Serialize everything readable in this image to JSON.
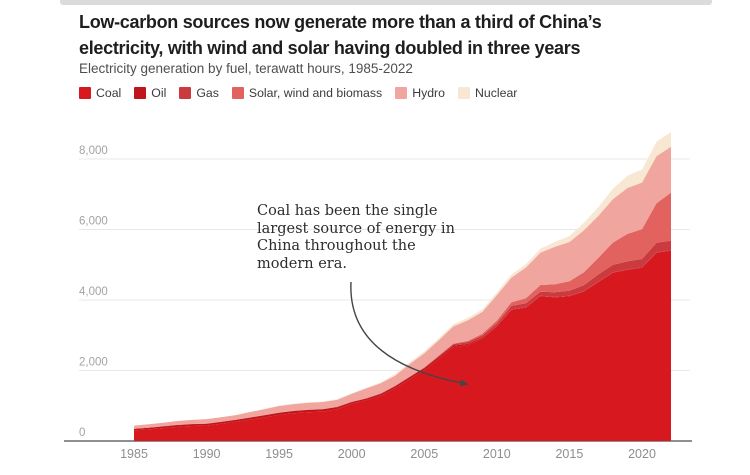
{
  "header": {
    "title_line1": "Low-carbon sources now generate more than a third of China’s",
    "title_line2": "electricity, with wind and solar having doubled in three years",
    "subtitle": "Electricity generation by fuel, terawatt hours, 1985-2022"
  },
  "legend": {
    "items": [
      {
        "label": "Coal",
        "color": "#d8181f"
      },
      {
        "label": "Oil",
        "color": "#c0151a"
      },
      {
        "label": "Gas",
        "color": "#cb3a3e"
      },
      {
        "label": "Solar, wind and biomass",
        "color": "#e2625f"
      },
      {
        "label": "Hydro",
        "color": "#f0a69f"
      },
      {
        "label": "Nuclear",
        "color": "#f8e8d3"
      }
    ]
  },
  "annotation": {
    "text": "Coal has been the single largest source of energy in China throughout the modern era."
  },
  "axes": {
    "y_ticks": [
      {
        "value": 0,
        "label": "0"
      },
      {
        "value": 2000,
        "label": "2,000"
      },
      {
        "value": 4000,
        "label": "4,000"
      },
      {
        "value": 6000,
        "label": "6,000"
      },
      {
        "value": 8000,
        "label": "8,000"
      }
    ],
    "x_ticks": [
      1985,
      1990,
      1995,
      2000,
      2005,
      2010,
      2015,
      2020
    ]
  },
  "chart_data": {
    "type": "area",
    "stacked": true,
    "title": "Low-carbon sources now generate more than a third of China’s electricity, with wind and solar having doubled in three years",
    "subtitle": "Electricity generation by fuel, terawatt hours, 1985-2022",
    "ylabel": "terawatt hours",
    "xlabel": "",
    "x_range": [
      1985,
      2022
    ],
    "ylim": [
      0,
      9300
    ],
    "grid": "horizontal",
    "legend_position": "top",
    "x": [
      1985,
      1986,
      1987,
      1988,
      1989,
      1990,
      1991,
      1992,
      1993,
      1994,
      1995,
      1996,
      1997,
      1998,
      1999,
      2000,
      2001,
      2002,
      2003,
      2004,
      2005,
      2006,
      2007,
      2008,
      2009,
      2010,
      2011,
      2012,
      2013,
      2014,
      2015,
      2016,
      2017,
      2018,
      2019,
      2020,
      2021,
      2022
    ],
    "series": [
      {
        "name": "Coal",
        "color": "#d8181f",
        "values": [
          300,
          330,
          365,
          400,
          425,
          441,
          490,
          545,
          605,
          670,
          740,
          790,
          815,
          835,
          905,
          1060,
          1155,
          1285,
          1500,
          1755,
          2010,
          2330,
          2660,
          2720,
          2905,
          3250,
          3720,
          3785,
          4110,
          4075,
          4109,
          4242,
          4512,
          4774,
          4854,
          4917,
          5339,
          5398
        ]
      },
      {
        "name": "Oil",
        "color": "#c0151a",
        "values": [
          45,
          47,
          50,
          55,
          55,
          50,
          52,
          55,
          60,
          62,
          60,
          62,
          68,
          65,
          58,
          47,
          48,
          52,
          55,
          60,
          60,
          55,
          45,
          35,
          25,
          14,
          12,
          10,
          10,
          10,
          9,
          10,
          10,
          10,
          10,
          10,
          11,
          11
        ]
      },
      {
        "name": "Gas",
        "color": "#cb3a3e",
        "values": [
          1,
          1,
          2,
          2,
          2,
          3,
          3,
          4,
          4,
          5,
          6,
          6,
          6,
          6,
          6,
          6,
          8,
          10,
          10,
          11,
          12,
          28,
          44,
          56,
          65,
          79,
          100,
          110,
          116,
          133,
          145,
          170,
          203,
          215,
          232,
          237,
          273,
          276
        ]
      },
      {
        "name": "Solar, wind and biomass",
        "color": "#e2625f",
        "values": [
          0,
          0,
          0,
          0,
          0,
          1,
          1,
          1,
          1,
          1,
          1,
          2,
          2,
          3,
          3,
          3,
          4,
          5,
          6,
          7,
          8,
          12,
          18,
          30,
          50,
          74,
          105,
          145,
          190,
          230,
          270,
          365,
          475,
          630,
          780,
          848,
          1120,
          1361
        ]
      },
      {
        "name": "Hydro",
        "color": "#f0a69f",
        "values": [
          92,
          95,
          100,
          109,
          118,
          127,
          125,
          131,
          152,
          168,
          187,
          188,
          196,
          198,
          196,
          222,
          277,
          288,
          284,
          354,
          397,
          436,
          485,
          585,
          616,
          722,
          699,
          872,
          920,
          1064,
          1113,
          1193,
          1190,
          1232,
          1304,
          1322,
          1340,
          1303
        ]
      },
      {
        "name": "Nuclear",
        "color": "#f8e8d3",
        "values": [
          0,
          0,
          0,
          0,
          0,
          0,
          1,
          1,
          2,
          14,
          13,
          14,
          14,
          14,
          15,
          17,
          17,
          25,
          43,
          50,
          53,
          55,
          62,
          68,
          70,
          74,
          87,
          97,
          112,
          133,
          171,
          213,
          248,
          295,
          349,
          366,
          408,
          418
        ]
      }
    ]
  }
}
